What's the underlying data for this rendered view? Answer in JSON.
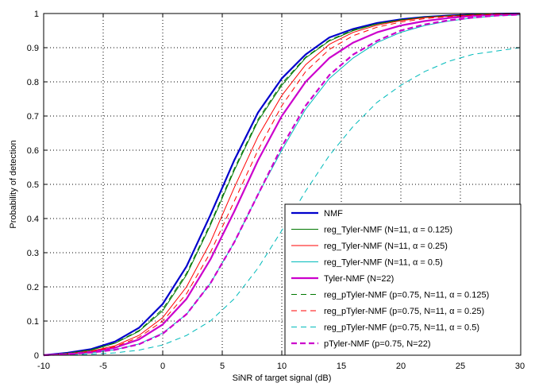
{
  "chart_data": {
    "type": "line",
    "title": "",
    "xlabel": "SiNR of target signal (dB)",
    "ylabel": "Probability of detection",
    "xlim": [
      -10,
      30
    ],
    "ylim": [
      0,
      1
    ],
    "xticks": [
      "-10",
      "-5",
      "0",
      "5",
      "10",
      "15",
      "20",
      "25",
      "30"
    ],
    "yticks": [
      "0",
      "0.1",
      "0.2",
      "0.3",
      "0.4",
      "0.5",
      "0.6",
      "0.7",
      "0.8",
      "0.9",
      "1"
    ],
    "grid": true,
    "legend_position": "bottom-right",
    "x": [
      -10,
      -8,
      -6,
      -4,
      -2,
      0,
      2,
      4,
      6,
      8,
      10,
      12,
      14,
      16,
      18,
      20,
      22,
      24,
      26,
      28,
      30
    ],
    "series": [
      {
        "name": "NMF",
        "color": "#0000cc",
        "style": "solid",
        "width": "thick",
        "values": [
          0.0,
          0.007,
          0.018,
          0.04,
          0.08,
          0.15,
          0.26,
          0.41,
          0.57,
          0.71,
          0.81,
          0.88,
          0.93,
          0.955,
          0.972,
          0.983,
          0.99,
          0.994,
          0.997,
          0.999,
          1.0
        ]
      },
      {
        "name": "reg_Tyler-NMF (N=11, α = 0.125)",
        "color": "#007700",
        "style": "solid",
        "width": "thin",
        "values": [
          0.0,
          0.006,
          0.015,
          0.035,
          0.07,
          0.13,
          0.235,
          0.38,
          0.54,
          0.685,
          0.79,
          0.87,
          0.92,
          0.95,
          0.969,
          0.981,
          0.989,
          0.993,
          0.996,
          0.998,
          1.0
        ]
      },
      {
        "name": "reg_Tyler-NMF (N=11, α = 0.25)",
        "color": "#ff0000",
        "style": "solid",
        "width": "thin",
        "values": [
          0.0,
          0.005,
          0.012,
          0.028,
          0.058,
          0.11,
          0.2,
          0.33,
          0.49,
          0.64,
          0.76,
          0.85,
          0.91,
          0.945,
          0.966,
          0.979,
          0.988,
          0.993,
          0.996,
          0.998,
          0.999
        ]
      },
      {
        "name": "reg_Tyler-NMF (N=11, α = 0.5)",
        "color": "#00bbbb",
        "style": "solid",
        "width": "thin",
        "values": [
          0.0,
          0.003,
          0.007,
          0.016,
          0.033,
          0.065,
          0.12,
          0.21,
          0.33,
          0.47,
          0.6,
          0.72,
          0.81,
          0.87,
          0.915,
          0.945,
          0.965,
          0.978,
          0.987,
          0.993,
          0.996
        ]
      },
      {
        "name": "Tyler-NMF (N=22)",
        "color": "#cc00cc",
        "style": "solid",
        "width": "thick",
        "values": [
          0.0,
          0.004,
          0.01,
          0.022,
          0.046,
          0.09,
          0.165,
          0.28,
          0.42,
          0.57,
          0.7,
          0.8,
          0.87,
          0.915,
          0.945,
          0.965,
          0.978,
          0.987,
          0.993,
          0.997,
          0.999
        ]
      },
      {
        "name": "reg_pTyler-NMF (p=0.75, N=11, α = 0.125)",
        "color": "#007700",
        "style": "dashed",
        "width": "thin",
        "values": [
          0.0,
          0.006,
          0.016,
          0.036,
          0.072,
          0.135,
          0.24,
          0.385,
          0.545,
          0.69,
          0.795,
          0.872,
          0.922,
          0.952,
          0.97,
          0.982,
          0.99,
          0.994,
          0.997,
          0.999,
          1.0
        ]
      },
      {
        "name": "reg_pTyler-NMF (p=0.75, N=11, α = 0.25)",
        "color": "#ff0000",
        "style": "dashed",
        "width": "thin",
        "values": [
          0.0,
          0.004,
          0.011,
          0.025,
          0.052,
          0.1,
          0.18,
          0.3,
          0.45,
          0.6,
          0.73,
          0.83,
          0.895,
          0.935,
          0.96,
          0.975,
          0.985,
          0.991,
          0.995,
          0.998,
          0.999
        ]
      },
      {
        "name": "reg_pTyler-NMF (p=0.75, N=11, α = 0.5)",
        "color": "#00bbbb",
        "style": "dashed",
        "width": "thin",
        "values": [
          0.0,
          0.001,
          0.003,
          0.007,
          0.015,
          0.03,
          0.058,
          0.1,
          0.165,
          0.255,
          0.365,
          0.48,
          0.585,
          0.67,
          0.74,
          0.79,
          0.83,
          0.86,
          0.88,
          0.89,
          0.9
        ]
      },
      {
        "name": "pTyler-NMF (p=0.75, N=22)",
        "color": "#cc00cc",
        "style": "dashed",
        "width": "thick",
        "values": [
          0.0,
          0.003,
          0.008,
          0.016,
          0.032,
          0.063,
          0.12,
          0.21,
          0.33,
          0.47,
          0.61,
          0.73,
          0.82,
          0.88,
          0.92,
          0.95,
          0.968,
          0.98,
          0.988,
          0.994,
          0.997
        ]
      }
    ]
  }
}
